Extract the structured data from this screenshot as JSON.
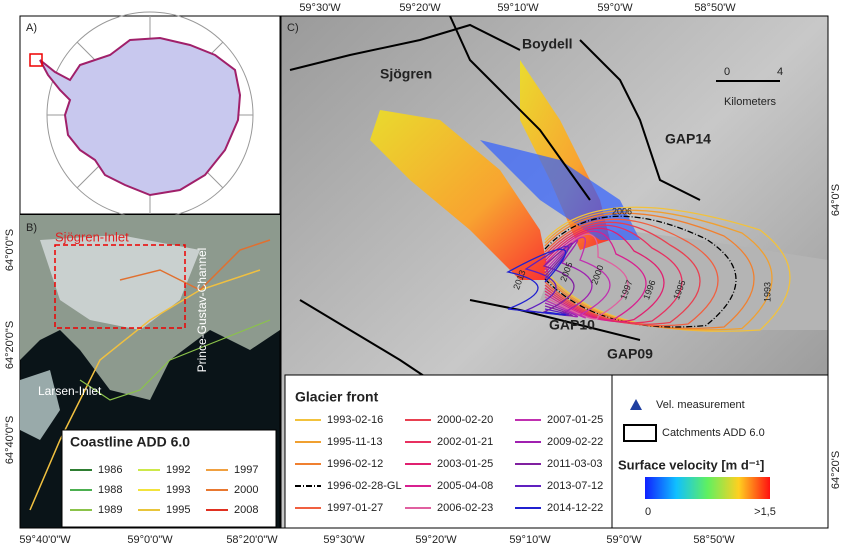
{
  "panel_a": {
    "label": "A)"
  },
  "panel_b": {
    "label": "B)",
    "places": [
      "Sjögren-Inlet",
      "Prince-Gustav-Channel",
      "Larsen-Inlet"
    ],
    "lat_labels": [
      "64°0'0\"S",
      "64°20'0\"S",
      "64°40'0\"S"
    ],
    "lon_labels": [
      "59°40'0\"W",
      "59°0'0\"W",
      "58°20'0\"W"
    ],
    "legend": {
      "title": "Coastline ADD 6.0",
      "items": [
        {
          "label": "1986",
          "color": "#2e7d32"
        },
        {
          "label": "1988",
          "color": "#4caf50"
        },
        {
          "label": "1989",
          "color": "#8bc34a"
        },
        {
          "label": "1992",
          "color": "#cde84a"
        },
        {
          "label": "1993",
          "color": "#f2e33c"
        },
        {
          "label": "1995",
          "color": "#e8c53a"
        },
        {
          "label": "1997",
          "color": "#f0a040"
        },
        {
          "label": "2000",
          "color": "#e87830"
        },
        {
          "label": "2008",
          "color": "#e03020"
        }
      ]
    }
  },
  "panel_c": {
    "label": "C)",
    "lon_labels_top": [
      "59°30'W",
      "59°20'W",
      "59°10'W",
      "59°0'W",
      "58°50'W"
    ],
    "lon_labels_bottom": [
      "59°30'W",
      "59°20'W",
      "59°10'W",
      "59°0'W",
      "58°50'W"
    ],
    "lat_labels": [
      "64°0'S",
      "64°20'S"
    ],
    "places": [
      "Sjögren",
      "Boydell",
      "GAP14",
      "GAP10",
      "GAP09"
    ],
    "scale": [
      "0",
      "4",
      "Kilometers"
    ],
    "front_years": [
      "2006",
      "2005",
      "2000",
      "1997",
      "1996",
      "1995",
      "1993",
      "2013"
    ],
    "legend": {
      "title": "Glacier front",
      "items": [
        {
          "label": "1993-02-16",
          "color": "#f2c23c"
        },
        {
          "label": "1995-11-13",
          "color": "#f0a030"
        },
        {
          "label": "1996-02-12",
          "color": "#f08030"
        },
        {
          "label": "1996-02-28-GL",
          "color": "#000000"
        },
        {
          "label": "1997-01-27",
          "color": "#f06040"
        },
        {
          "label": "2000-02-20",
          "color": "#e84050"
        },
        {
          "label": "2002-01-21",
          "color": "#e83060"
        },
        {
          "label": "2003-01-25",
          "color": "#e02070"
        },
        {
          "label": "2005-04-08",
          "color": "#d82090"
        },
        {
          "label": "2006-02-23",
          "color": "#e060a0"
        },
        {
          "label": "2007-01-25",
          "color": "#c030b0"
        },
        {
          "label": "2009-02-22",
          "color": "#a020b0"
        },
        {
          "label": "2011-03-03",
          "color": "#8020a0"
        },
        {
          "label": "2013-07-12",
          "color": "#6020c0"
        },
        {
          "label": "2014-12-22",
          "color": "#2020d0"
        }
      ]
    },
    "vel_measurement": "Vel. measurement",
    "catchments": "Catchments ADD 6.0",
    "velocity_title": "Surface velocity [m d⁻¹]",
    "velocity_min": "0",
    "velocity_max": ">1,5"
  }
}
